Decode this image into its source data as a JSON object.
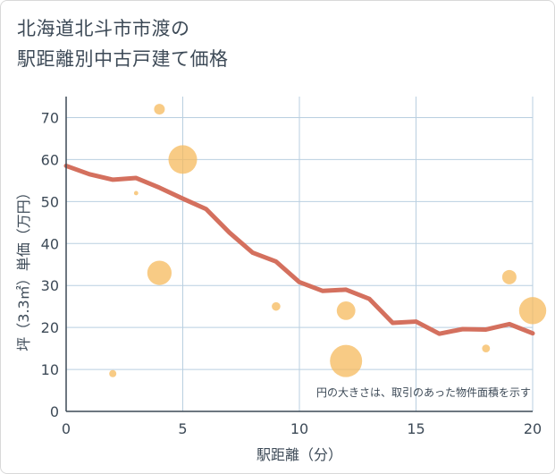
{
  "title_line1": "北海道北斗市市渡の",
  "title_line2": "駅距離別中古戸建て価格",
  "chart_data": {
    "type": "scatter+line",
    "title": "北海道北斗市市渡の駅距離別中古戸建て価格",
    "xlabel": "駅距離（分）",
    "ylabel": "坪（3.3㎡）単価（万円）",
    "xlim": [
      0,
      20
    ],
    "ylim": [
      0,
      75
    ],
    "xticks": [
      0,
      5,
      10,
      15,
      20
    ],
    "yticks": [
      0,
      10,
      20,
      30,
      40,
      50,
      60,
      70
    ],
    "grid": true,
    "note": "円の大きさは、取引のあった物件面積を示す",
    "colors": {
      "bubble": "#f5b95c",
      "line": "#d4705e",
      "grid": "#b9cfe0",
      "axis": "#3d4a57"
    },
    "points": [
      {
        "x": 2,
        "y": 9,
        "size": 1
      },
      {
        "x": 3,
        "y": 52,
        "size": 0.6
      },
      {
        "x": 4,
        "y": 72,
        "size": 1.5
      },
      {
        "x": 4,
        "y": 33,
        "size": 3.4
      },
      {
        "x": 5,
        "y": 60,
        "size": 4
      },
      {
        "x": 9,
        "y": 25,
        "size": 1.2
      },
      {
        "x": 12,
        "y": 24,
        "size": 2.6
      },
      {
        "x": 12,
        "y": 12,
        "size": 4.5
      },
      {
        "x": 18,
        "y": 15,
        "size": 1.1
      },
      {
        "x": 19,
        "y": 32,
        "size": 2
      },
      {
        "x": 20,
        "y": 24,
        "size": 3.8
      }
    ],
    "trend": {
      "x": [
        0,
        1,
        2,
        3,
        4,
        5,
        6,
        7,
        8,
        9,
        10,
        11,
        12,
        13,
        14,
        15,
        16,
        17,
        18,
        19,
        20
      ],
      "y": [
        58.5,
        56.5,
        55.2,
        55.6,
        53.3,
        50.7,
        48.2,
        42.6,
        37.8,
        35.7,
        30.8,
        28.7,
        29.0,
        26.8,
        21.1,
        21.4,
        18.5,
        19.6,
        19.5,
        20.8,
        18.6
      ]
    }
  }
}
